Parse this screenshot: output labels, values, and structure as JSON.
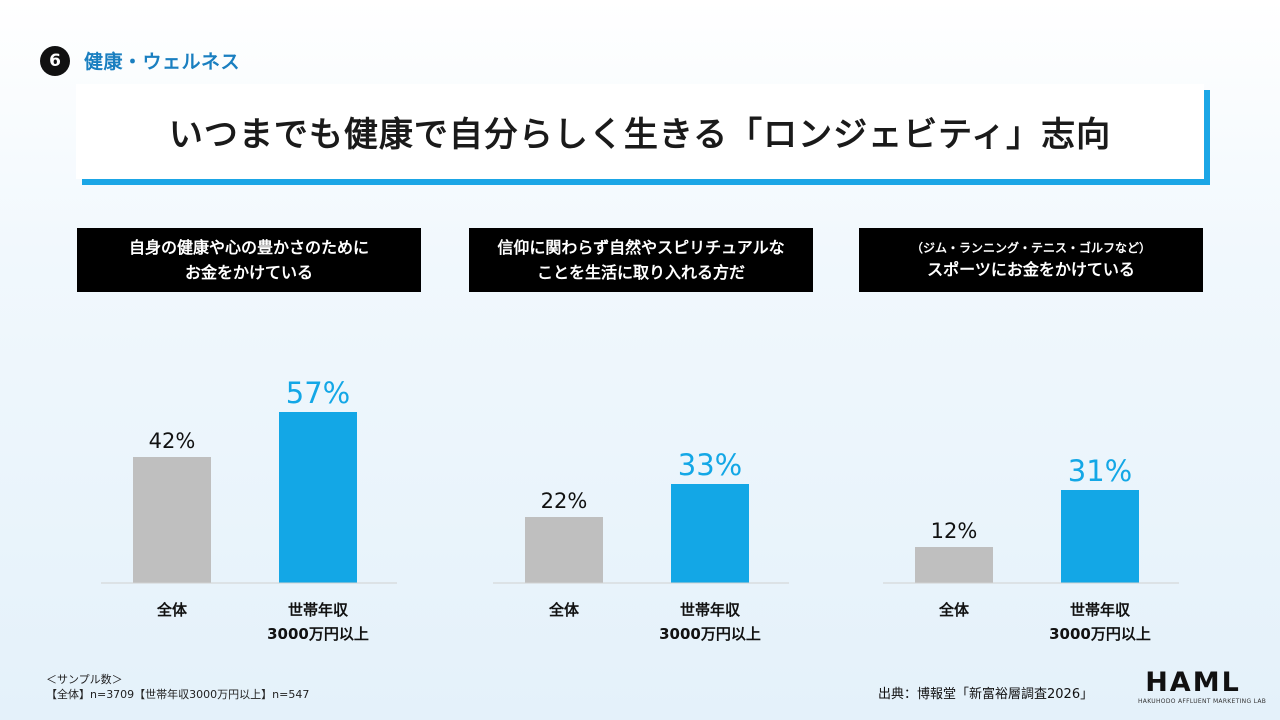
{
  "section": {
    "number": "6",
    "label": "健康・ウェルネス"
  },
  "title": "いつまでも健康で自分らしく生きる「ロンジェビティ」志向",
  "colors": {
    "overall": "#bfbfbf",
    "high_income": "#13a7e6",
    "accent": "#1ba6e6"
  },
  "chart_data": [
    {
      "type": "bar",
      "title_lines": [
        "自身の健康や心の豊かさのために",
        "お金をかけている"
      ],
      "categories": [
        [
          "全体"
        ],
        [
          "世帯年収",
          "3000万円以上"
        ]
      ],
      "values": [
        42,
        57
      ],
      "value_labels": [
        "42%",
        "57%"
      ],
      "ylim": [
        0,
        100
      ]
    },
    {
      "type": "bar",
      "title_lines": [
        "信仰に関わらず自然やスピリチュアルな",
        "ことを生活に取り入れる方だ"
      ],
      "categories": [
        [
          "全体"
        ],
        [
          "世帯年収",
          "3000万円以上"
        ]
      ],
      "values": [
        22,
        33
      ],
      "value_labels": [
        "22%",
        "33%"
      ],
      "ylim": [
        0,
        100
      ]
    },
    {
      "type": "bar",
      "title_lines": [
        "（ジム・ランニング・テニス・ゴルフなど）",
        "スポーツにお金をかけている"
      ],
      "categories": [
        [
          "全体"
        ],
        [
          "世帯年収",
          "3000万円以上"
        ]
      ],
      "values": [
        12,
        31
      ],
      "value_labels": [
        "12%",
        "31%"
      ],
      "ylim": [
        0,
        100
      ]
    }
  ],
  "footer": {
    "sample_title": "＜サンプル数＞",
    "sample_detail": "【全体】n=3709【世帯年収3000万円以上】n=547",
    "source": "出典：博報堂「新富裕層調査2026」",
    "logo_main": "HAML",
    "logo_sub": "HAKUHODO AFFLUENT MARKETING LAB"
  }
}
